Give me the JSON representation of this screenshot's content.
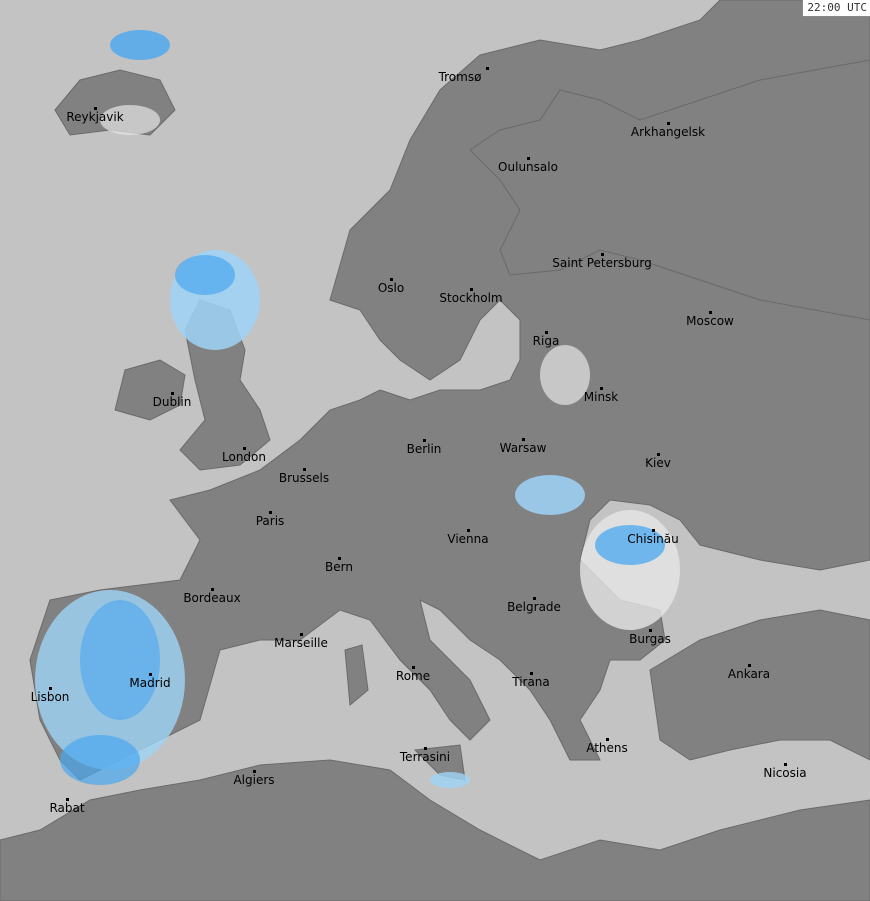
{
  "timestamp": "22:00 UTC",
  "colors": {
    "sea": "#c3c3c3",
    "land": "#818181",
    "border": "#6a6a6a",
    "radar_light": "#9fd4f7",
    "radar_mid": "#4aa8f0",
    "radar_white": "#e6e6e6"
  },
  "cities": [
    {
      "name": "Tromsø"
    },
    {
      "name": "Reykjavik"
    },
    {
      "name": "Arkhangelsk"
    },
    {
      "name": "Oulunsalo"
    },
    {
      "name": "Saint Petersburg"
    },
    {
      "name": "Oslo"
    },
    {
      "name": "Stockholm"
    },
    {
      "name": "Moscow"
    },
    {
      "name": "Riga"
    },
    {
      "name": "Dublin"
    },
    {
      "name": "Minsk"
    },
    {
      "name": "Berlin"
    },
    {
      "name": "Warsaw"
    },
    {
      "name": "London"
    },
    {
      "name": "Kiev"
    },
    {
      "name": "Brussels"
    },
    {
      "name": "Paris"
    },
    {
      "name": "Vienna"
    },
    {
      "name": "Chisinău"
    },
    {
      "name": "Bern"
    },
    {
      "name": "Bordeaux"
    },
    {
      "name": "Belgrade"
    },
    {
      "name": "Marseille"
    },
    {
      "name": "Burgas"
    },
    {
      "name": "Ankara"
    },
    {
      "name": "Madrid"
    },
    {
      "name": "Rome"
    },
    {
      "name": "Tirana"
    },
    {
      "name": "Lisbon"
    },
    {
      "name": "Athens"
    },
    {
      "name": "Terrasini"
    },
    {
      "name": "Algiers"
    },
    {
      "name": "Nicosia"
    },
    {
      "name": "Rabat"
    }
  ]
}
